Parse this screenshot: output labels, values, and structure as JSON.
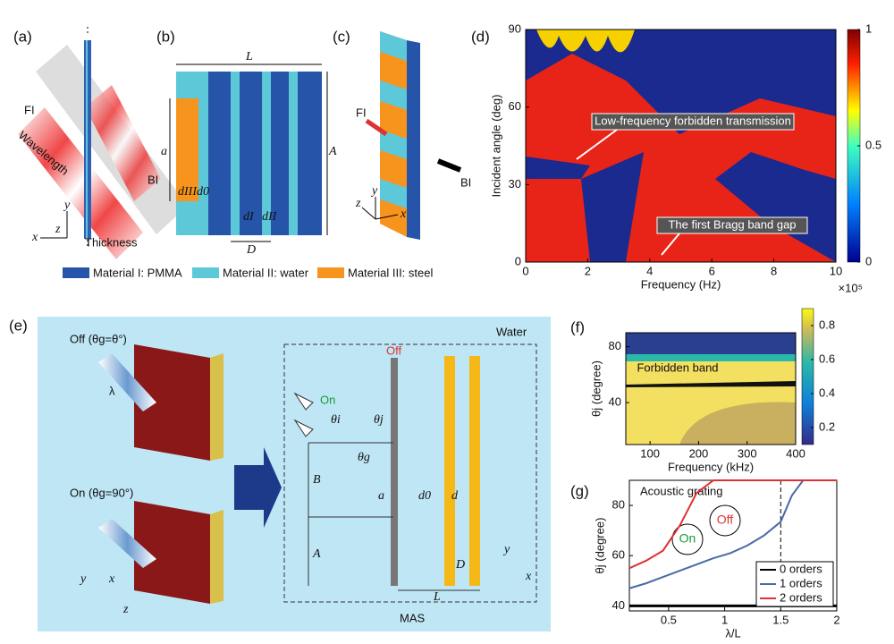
{
  "panel_labels": [
    "(a)",
    "(b)",
    "(c)",
    "(d)",
    "(e)",
    "(f)",
    "(g)"
  ],
  "a": {
    "fi": "FI",
    "wavelength": "Wavelength",
    "bi": "BI",
    "thickness": "Thickness",
    "x": "x",
    "y": "y",
    "z": "z"
  },
  "b": {
    "L": "L",
    "a": "a",
    "A": "A",
    "dIII": "dIII",
    "d0": "d0",
    "dI": "dI",
    "dII": "dII",
    "D": "D"
  },
  "c": {
    "fi": "FI",
    "bi": "BI",
    "x": "x",
    "y": "y",
    "z": "z"
  },
  "legend": [
    "Material I: PMMA",
    "Material II: water",
    "Material III: steel"
  ],
  "e": {
    "off": "Off (θg=θ°)",
    "on_state": "On (θg=90°)",
    "lambda": "λ",
    "water": "Water",
    "off_tag": "Off",
    "on_tag": "On",
    "theta_i": "θi",
    "theta_j": "θj",
    "theta_g": "θg",
    "B": "B",
    "A": "A",
    "a": "a",
    "d0": "d0",
    "d": "d",
    "D": "D",
    "L": "L",
    "mas": "MAS",
    "x": "x",
    "y": "y",
    "z": "z"
  },
  "chart_data": [
    {
      "type": "heatmap",
      "xlabel": "Frequency (Hz)",
      "ylabel": "Incident angle (deg)",
      "x_multiplier": "×10⁵",
      "xlim": [
        0,
        10
      ],
      "xticks": [
        0,
        2,
        4,
        6,
        8,
        10
      ],
      "ylim": [
        0,
        90
      ],
      "yticks": [
        0,
        30,
        60,
        90
      ],
      "colorbar_lim": [
        0,
        1
      ],
      "colorbar_ticks": [
        0,
        0.5,
        1
      ],
      "annotations": [
        "Low-frequency forbidden transmission",
        "The first Bragg band gap"
      ]
    },
    {
      "type": "heatmap",
      "xlabel": "Frequency (kHz)",
      "ylabel": "θj (degree)",
      "xlim": [
        50,
        400
      ],
      "xticks": [
        100,
        200,
        300,
        400
      ],
      "ylim": [
        10,
        90
      ],
      "yticks": [
        40,
        80
      ],
      "colorbar_lim": [
        0.1,
        0.9
      ],
      "colorbar_ticks": [
        0.2,
        0.4,
        0.6,
        0.8
      ],
      "annotations": [
        "Forbidden band"
      ]
    },
    {
      "type": "line",
      "xlabel": "λ/L",
      "ylabel": "θj (degree)",
      "title": "Acoustic grating",
      "x": [
        0.15,
        0.3,
        0.45,
        0.6,
        0.75,
        0.9,
        1.05,
        1.2,
        1.35,
        1.5,
        1.6,
        1.7,
        1.8,
        2.0
      ],
      "series": [
        {
          "name": "0 orders",
          "color": "#000000",
          "values": [
            40,
            40,
            40,
            40,
            40,
            40,
            40,
            40,
            40,
            40,
            40,
            40,
            40,
            40
          ]
        },
        {
          "name": "1 orders",
          "color": "#4a6aa5",
          "values": [
            47,
            49,
            51.5,
            54,
            56.5,
            59,
            61,
            64,
            68,
            73.5,
            84,
            90,
            90,
            90
          ]
        },
        {
          "name": "2 orders",
          "color": "#e03030",
          "values": [
            55,
            58,
            62,
            72,
            85,
            90,
            90,
            90,
            90,
            90,
            90,
            90,
            90,
            90
          ]
        }
      ],
      "xlim": [
        0.15,
        2.0
      ],
      "xticks": [
        0.5,
        1,
        1.5,
        2
      ],
      "ylim": [
        38,
        90
      ],
      "yticks": [
        40,
        60,
        80
      ],
      "vline": 1.5,
      "legend": "bottom-right",
      "annotations": [
        "On",
        "Off"
      ]
    }
  ]
}
